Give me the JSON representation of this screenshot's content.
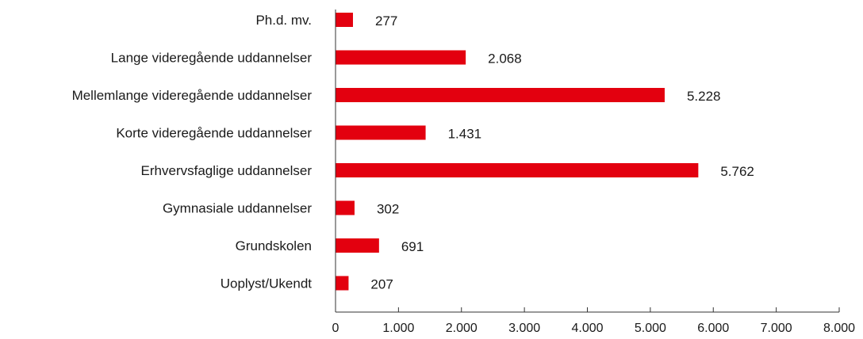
{
  "chart_data": {
    "type": "bar",
    "orientation": "horizontal",
    "categories": [
      "Ph.d. mv.",
      "Lange videregående uddannelser",
      "Mellemlange videregående uddannelser",
      "Korte videregående uddannelser",
      "Erhvervsfaglige uddannelser",
      "Gymnasiale uddannelser",
      "Grundskolen",
      "Uoplyst/Ukendt"
    ],
    "values": [
      277,
      2068,
      5228,
      1431,
      5762,
      302,
      691,
      207
    ],
    "value_labels": [
      "277",
      "2.068",
      "5.228",
      "1.431",
      "5.762",
      "302",
      "691",
      "207"
    ],
    "xlim": [
      0,
      8000
    ],
    "x_ticks": [
      0,
      1000,
      2000,
      3000,
      4000,
      5000,
      6000,
      7000,
      8000
    ],
    "x_tick_labels": [
      "0",
      "1.000",
      "2.000",
      "3.000",
      "4.000",
      "5.000",
      "6.000",
      "7.000",
      "8.000"
    ],
    "bar_color": "#e3000f",
    "grid": false,
    "legend": "none"
  }
}
